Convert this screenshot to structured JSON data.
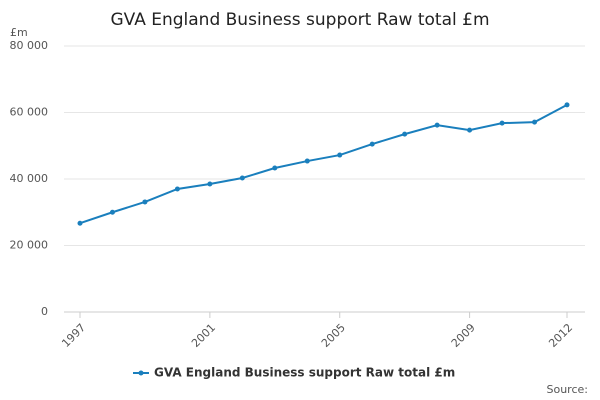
{
  "chart_data": {
    "type": "line",
    "title": "GVA England Business support Raw total £m",
    "y_label": "£m",
    "source": "Source:",
    "x": [
      1997,
      1998,
      1999,
      2000,
      2001,
      2002,
      2003,
      2004,
      2005,
      2006,
      2007,
      2008,
      2009,
      2010,
      2011,
      2012
    ],
    "series": [
      {
        "name": "GVA England Business support Raw total £m",
        "color": "#1a7fbd",
        "values": [
          26700,
          30000,
          33100,
          37000,
          38500,
          40300,
          43300,
          45400,
          47200,
          50500,
          53500,
          56200,
          54700,
          56800,
          57100,
          62300
        ]
      }
    ],
    "xlim": [
      1997,
      2012
    ],
    "xticks": [
      1997,
      2001,
      2005,
      2009,
      2012
    ],
    "ylim": [
      0,
      80000
    ],
    "yticks": [
      0,
      {
        "value": 20000,
        "label": "20 000"
      },
      {
        "value": 40000,
        "label": "40 000"
      },
      {
        "value": 60000,
        "label": "60 000"
      },
      {
        "value": 80000,
        "label": "80 000"
      }
    ],
    "grid": true,
    "legend": "bottom"
  }
}
